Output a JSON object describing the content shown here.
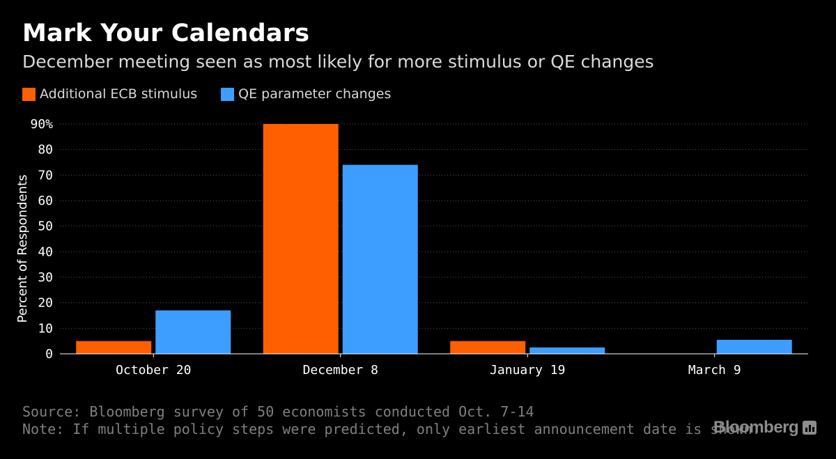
{
  "title": "Mark Your Calendars",
  "subtitle": "December meeting seen as most likely for more stimulus or QE changes",
  "legend": [
    {
      "label": "Additional ECB stimulus",
      "color": "#ff5f00"
    },
    {
      "label": "QE parameter changes",
      "color": "#3d9eff"
    }
  ],
  "footer": {
    "source": "Source: Bloomberg survey of 50 economists conducted Oct. 7-14",
    "note": "Note: If multiple policy steps were predicted, only earliest announcement date is shown.",
    "brand": "Bloomberg"
  },
  "chart_data": {
    "type": "bar",
    "title": "Mark Your Calendars",
    "subtitle": "December meeting seen as most likely for more stimulus or QE changes",
    "xlabel": "",
    "ylabel": "Percent of Respondents",
    "ylim": [
      0,
      90
    ],
    "yticks": [
      0,
      10,
      20,
      30,
      40,
      50,
      60,
      70,
      80,
      90
    ],
    "ytick_labels": [
      "0",
      "10",
      "20",
      "30",
      "40",
      "50",
      "60",
      "70",
      "80",
      "90%"
    ],
    "grid": true,
    "categories": [
      "October 20",
      "December 8",
      "January 19",
      "March 9"
    ],
    "series": [
      {
        "name": "Additional ECB stimulus",
        "color": "#ff5f00",
        "values": [
          5,
          90,
          5,
          0
        ]
      },
      {
        "name": "QE parameter changes",
        "color": "#3d9eff",
        "values": [
          17,
          74,
          2.5,
          5.5
        ]
      }
    ]
  }
}
